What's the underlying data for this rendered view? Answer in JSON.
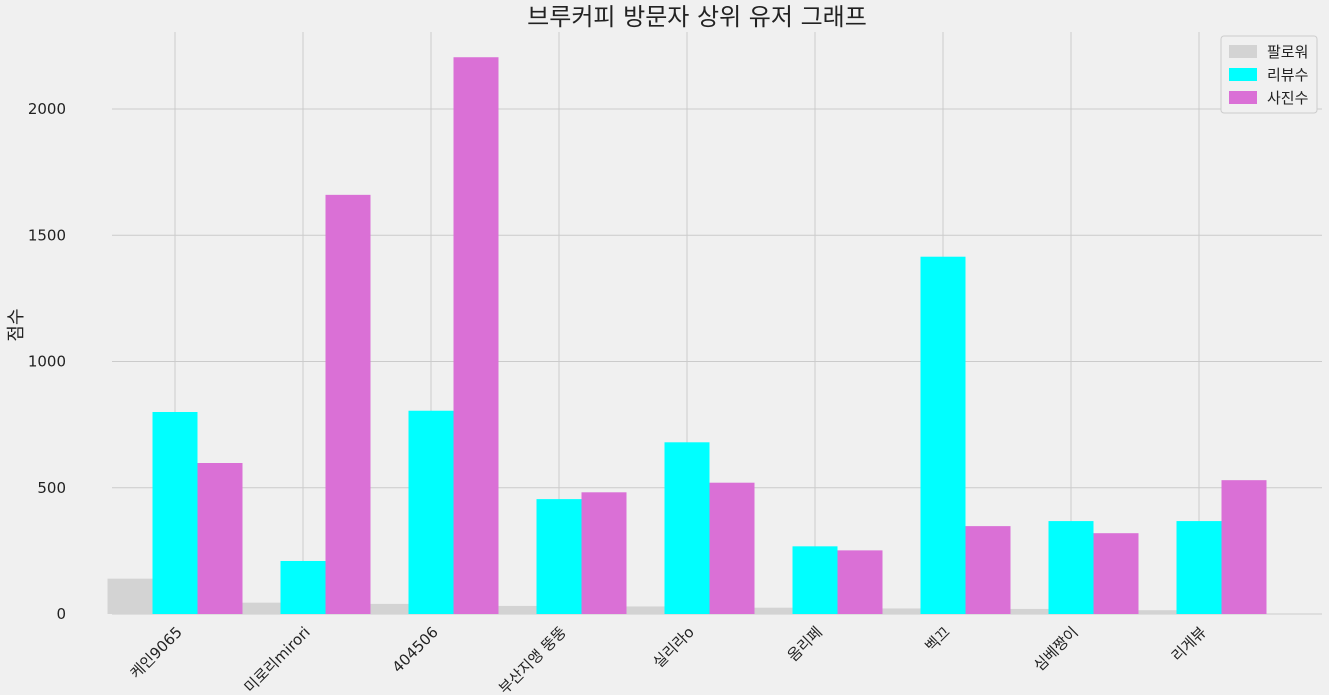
{
  "chart_data": {
    "type": "bar",
    "title": "브루커피 방문자 상위 유저 그래프",
    "xlabel": "",
    "ylabel": "점수",
    "categories": [
      "케인9065",
      "미로리mirori",
      "404506",
      "부산지앵 뚱뚱",
      "실리라o",
      "옴리페",
      "벡끄",
      "심베짱이",
      "리게뷰"
    ],
    "series": [
      {
        "name": "팔로워",
        "color": "#d3d3d3",
        "values": [
          140,
          45,
          40,
          32,
          30,
          25,
          22,
          20,
          15
        ]
      },
      {
        "name": "리뷰수",
        "color": "#00ffff",
        "values": [
          800,
          210,
          805,
          455,
          680,
          268,
          1415,
          368,
          368
        ]
      },
      {
        "name": "사진수",
        "color": "#da70d6",
        "values": [
          598,
          1660,
          2205,
          482,
          520,
          252,
          348,
          320,
          530
        ]
      }
    ],
    "ylim": [
      0,
      2300
    ],
    "yticks": [
      0,
      500,
      1000,
      1500,
      2000
    ],
    "grid": true,
    "legend_position": "top-right"
  }
}
